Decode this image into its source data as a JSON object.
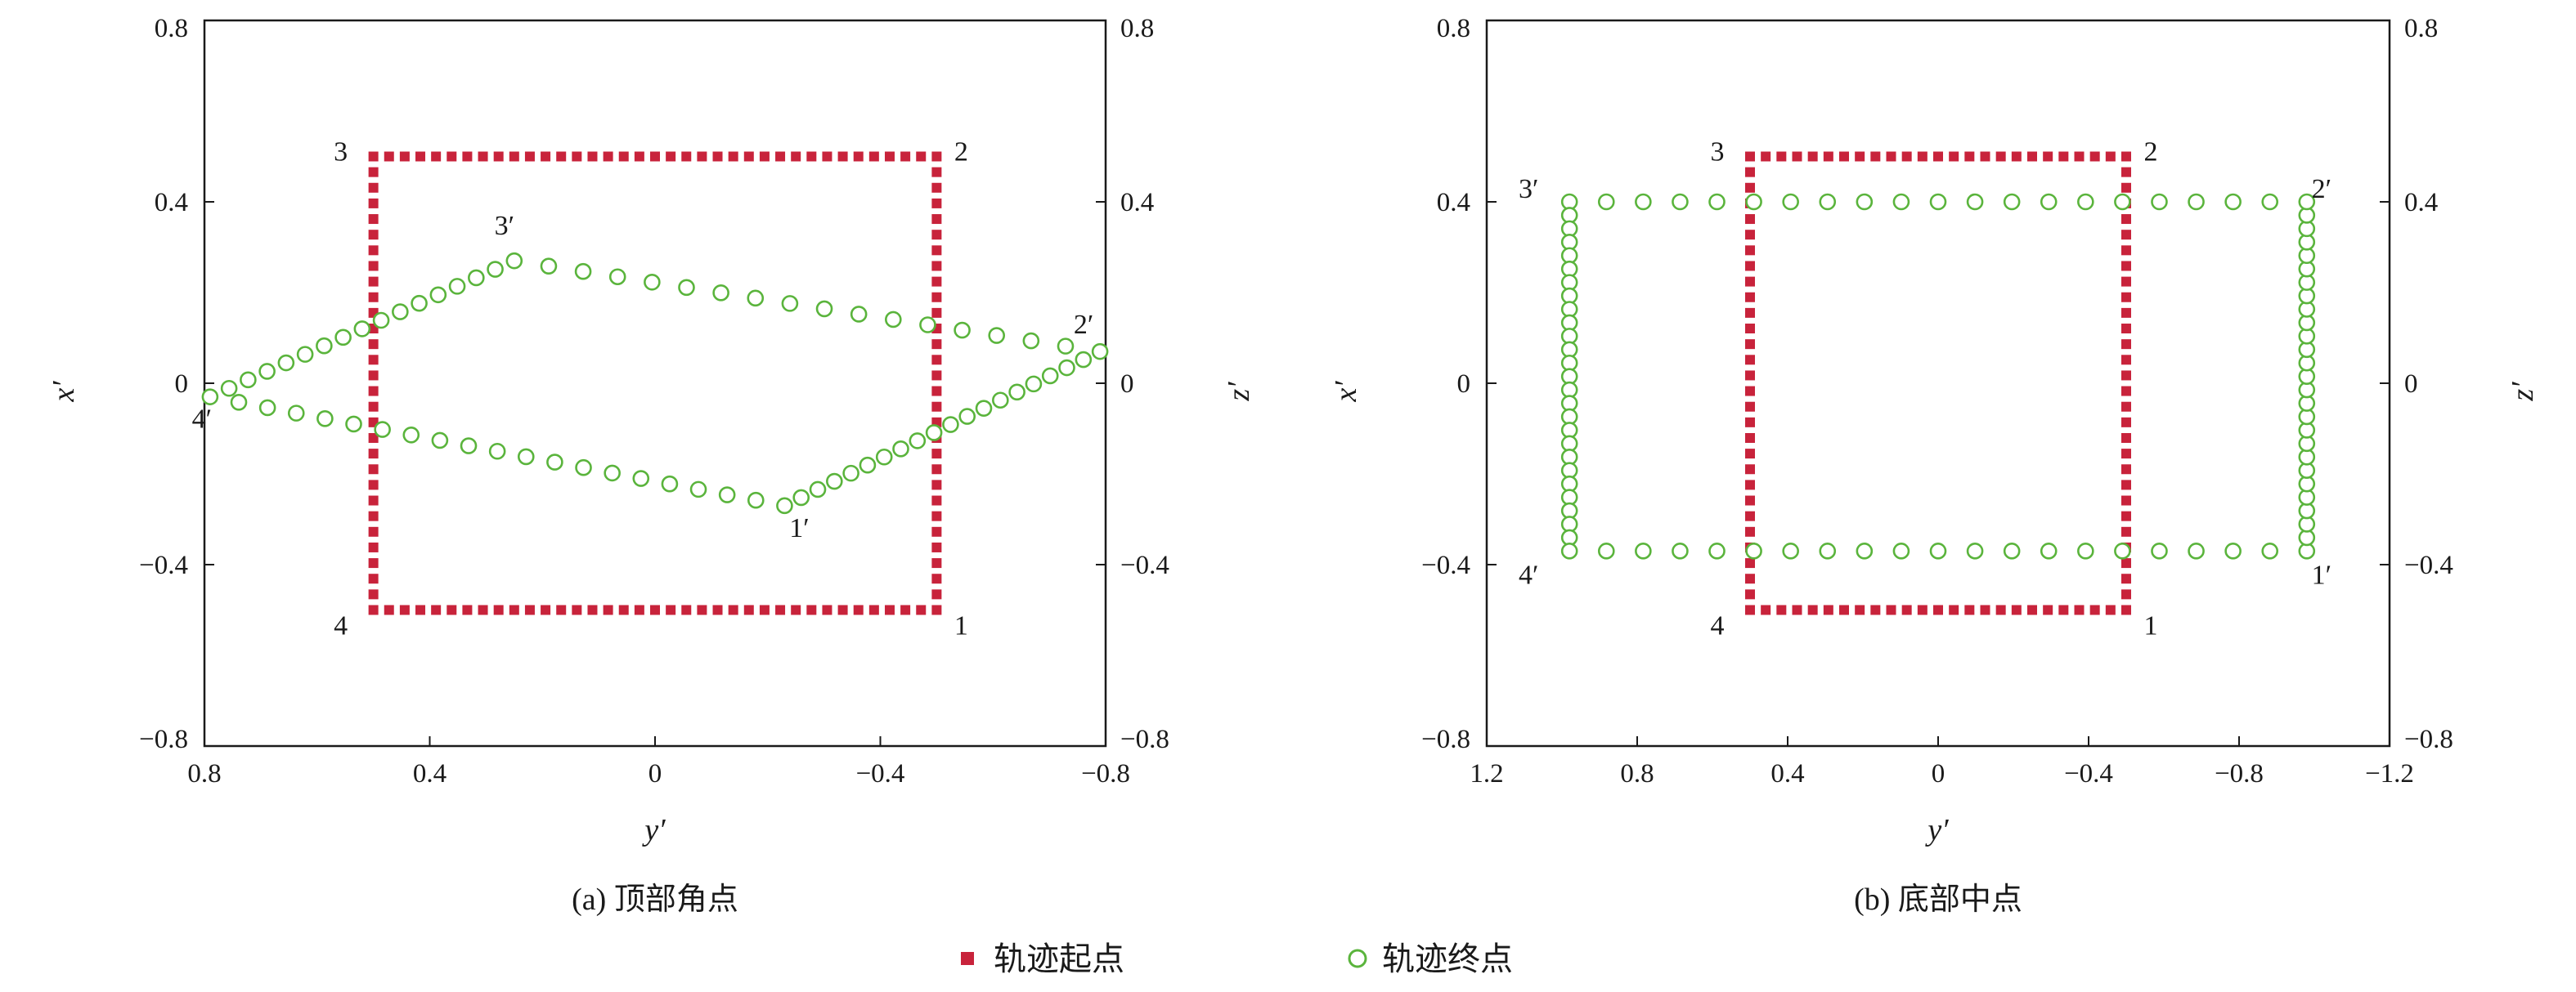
{
  "colors": {
    "start_marker": "#c8233b",
    "end_marker_stroke": "#5ab43c",
    "axis": "#1a1a1a"
  },
  "legend": {
    "start_label": "轨迹起点",
    "end_label": "轨迹终点"
  },
  "chart_data": [
    {
      "type": "scatter",
      "caption": "(a) 顶部角点",
      "xlabel": "y′",
      "ylabel_left": "x′",
      "ylabel_right": "z′",
      "xlim": [
        0.8,
        -0.8
      ],
      "ylim": [
        -0.8,
        0.8
      ],
      "x_ticks": [
        0.8,
        0.4,
        0,
        -0.4,
        -0.8
      ],
      "y_ticks": [
        0.8,
        0.4,
        0,
        -0.4,
        -0.8
      ],
      "x_tick_labels": [
        "0.8",
        "0.4",
        "0",
        "−0.4",
        "−0.8"
      ],
      "y_tick_labels": [
        "0.8",
        "0.4",
        "0",
        "−0.4",
        "−0.8"
      ],
      "grid": false,
      "start_square": {
        "corners": [
          [
            -0.5,
            -0.5
          ],
          [
            -0.5,
            0.5
          ],
          [
            0.5,
            0.5
          ],
          [
            0.5,
            -0.5
          ]
        ],
        "labels": [
          "1",
          "2",
          "3",
          "4"
        ]
      },
      "end_path": {
        "vertices": [
          [
            -0.23,
            -0.27
          ],
          [
            -0.79,
            0.07
          ],
          [
            0.25,
            0.27
          ],
          [
            0.79,
            -0.03
          ]
        ],
        "labels": [
          "1′",
          "2′",
          "3′",
          "4′"
        ],
        "points_per_edge": [
          19,
          17,
          16,
          20
        ]
      }
    },
    {
      "type": "scatter",
      "caption": "(b) 底部中点",
      "xlabel": "y′",
      "ylabel_left": "x′",
      "ylabel_right": "z′",
      "xlim": [
        1.2,
        -1.2
      ],
      "ylim": [
        -0.8,
        0.8
      ],
      "x_ticks": [
        1.2,
        0.8,
        0.4,
        0,
        -0.4,
        -0.8,
        -1.2
      ],
      "y_ticks": [
        0.8,
        0.4,
        0,
        -0.4,
        -0.8
      ],
      "x_tick_labels": [
        "1.2",
        "0.8",
        "0.4",
        "0",
        "−0.4",
        "−0.8",
        "−1.2"
      ],
      "y_tick_labels": [
        "0.8",
        "0.4",
        "0",
        "−0.4",
        "−0.8"
      ],
      "grid": false,
      "start_square": {
        "corners": [
          [
            -0.5,
            -0.5
          ],
          [
            -0.5,
            0.5
          ],
          [
            0.5,
            0.5
          ],
          [
            0.5,
            -0.5
          ]
        ],
        "labels": [
          "1",
          "2",
          "3",
          "4"
        ]
      },
      "end_path": {
        "vertices": [
          [
            -0.98,
            -0.37
          ],
          [
            -0.98,
            0.4
          ],
          [
            0.98,
            0.4
          ],
          [
            0.98,
            -0.37
          ]
        ],
        "labels": [
          "1′",
          "2′",
          "3′",
          "4′"
        ],
        "points_per_edge": [
          26,
          20,
          26,
          20
        ]
      }
    }
  ]
}
